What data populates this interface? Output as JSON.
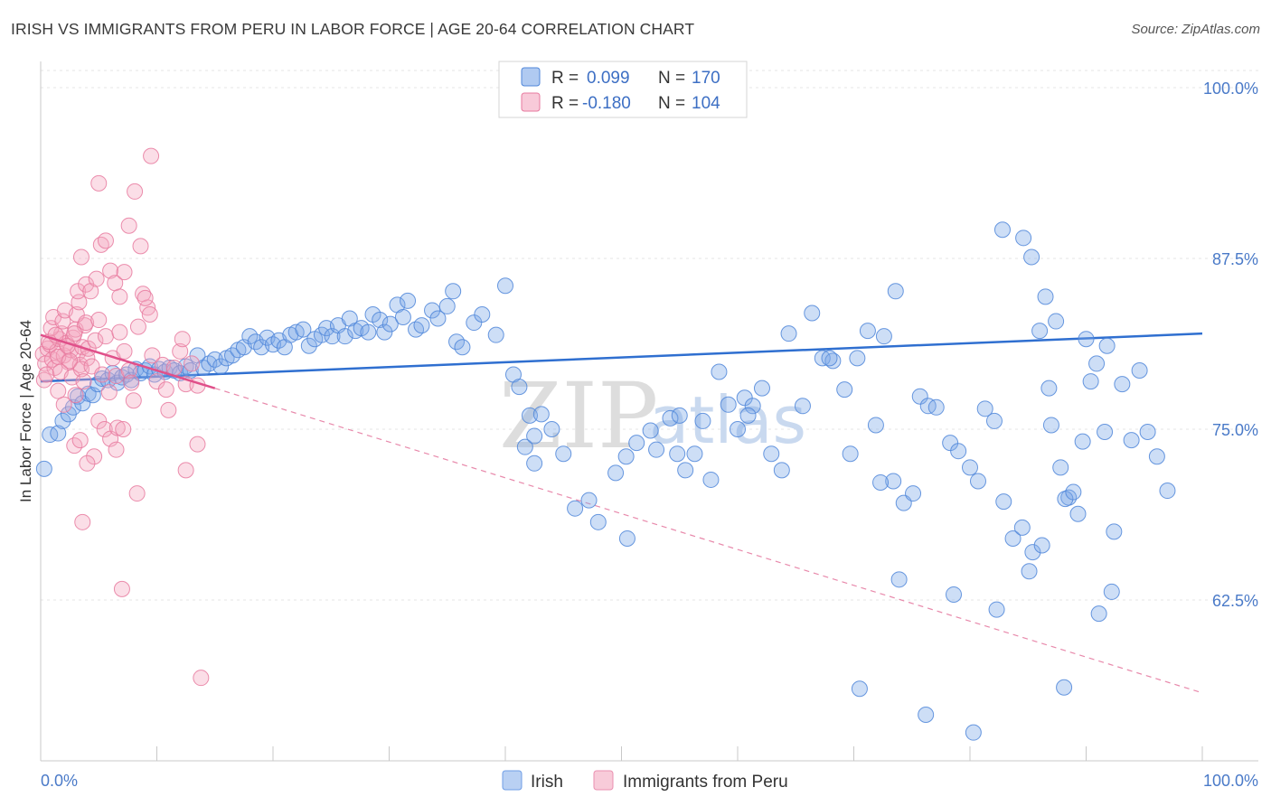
{
  "header": {
    "title": "IRISH VS IMMIGRANTS FROM PERU IN LABOR FORCE | AGE 20-64 CORRELATION CHART",
    "source": "Source: ZipAtlas.com"
  },
  "watermark": {
    "zip": "ZIP",
    "atlas": "atlas"
  },
  "legend": {
    "r_label": "R =",
    "n_label": "N =",
    "series": [
      {
        "name": "Irish",
        "r": "0.099",
        "n": "170",
        "color": "#7ba7e8"
      },
      {
        "name": "Immigrants from Peru",
        "r": "-0.180",
        "n": "104",
        "color": "#f4a7bf"
      }
    ]
  },
  "chart_data": {
    "type": "scatter",
    "title": "IRISH VS IMMIGRANTS FROM PERU IN LABOR FORCE | AGE 20-64 CORRELATION CHART",
    "xlabel": "",
    "ylabel": "In Labor Force | Age 20-64",
    "xlim": [
      0,
      100
    ],
    "ylim": [
      50.7,
      102.5
    ],
    "x_tick_labels": [
      "0.0%",
      "100.0%"
    ],
    "y_ticks": [
      {
        "value": 62.5,
        "label": "62.5%"
      },
      {
        "value": 75.0,
        "label": "75.0%"
      },
      {
        "value": 87.5,
        "label": "87.5%"
      },
      {
        "value": 100.0,
        "label": "100.0%"
      }
    ],
    "grid": true,
    "series": [
      {
        "name": "Irish",
        "color": "#7ba7e8",
        "stroke": "#4f86d9",
        "trend": {
          "x": [
            0,
            100
          ],
          "y": [
            78.5,
            82.0
          ],
          "color": "#2f6fd0"
        },
        "points": [
          [
            0.3,
            72.1
          ],
          [
            0.8,
            74.6
          ],
          [
            1.5,
            74.7
          ],
          [
            1.9,
            75.6
          ],
          [
            2.4,
            76.1
          ],
          [
            2.8,
            76.6
          ],
          [
            3.2,
            77.4
          ],
          [
            3.6,
            76.9
          ],
          [
            4.1,
            77.6
          ],
          [
            4.5,
            77.5
          ],
          [
            4.9,
            78.3
          ],
          [
            5.3,
            78.7
          ],
          [
            5.8,
            78.6
          ],
          [
            6.2,
            79.1
          ],
          [
            6.6,
            78.4
          ],
          [
            7.0,
            78.8
          ],
          [
            7.4,
            79.0
          ],
          [
            7.8,
            78.6
          ],
          [
            8.2,
            79.4
          ],
          [
            8.6,
            79.1
          ],
          [
            9.0,
            79.3
          ],
          [
            9.4,
            79.6
          ],
          [
            9.8,
            79.0
          ],
          [
            10.2,
            79.4
          ],
          [
            10.7,
            79.2
          ],
          [
            11.1,
            79.5
          ],
          [
            11.5,
            79.3
          ],
          [
            12.0,
            79.1
          ],
          [
            12.5,
            79.6
          ],
          [
            12.9,
            79.3
          ],
          [
            13.5,
            80.4
          ],
          [
            14.0,
            79.5
          ],
          [
            14.5,
            79.8
          ],
          [
            15.0,
            80.1
          ],
          [
            15.5,
            79.6
          ],
          [
            16.0,
            80.2
          ],
          [
            16.5,
            80.4
          ],
          [
            17.0,
            80.8
          ],
          [
            17.5,
            81.0
          ],
          [
            18.0,
            81.8
          ],
          [
            18.5,
            81.4
          ],
          [
            19.0,
            81.0
          ],
          [
            19.5,
            81.7
          ],
          [
            20.0,
            81.2
          ],
          [
            20.5,
            81.5
          ],
          [
            21.0,
            81.0
          ],
          [
            21.5,
            81.9
          ],
          [
            22.0,
            82.1
          ],
          [
            22.6,
            82.3
          ],
          [
            23.1,
            81.1
          ],
          [
            23.6,
            81.6
          ],
          [
            24.2,
            81.9
          ],
          [
            24.6,
            82.4
          ],
          [
            25.1,
            81.8
          ],
          [
            25.6,
            82.6
          ],
          [
            26.2,
            81.8
          ],
          [
            26.6,
            83.1
          ],
          [
            27.1,
            82.2
          ],
          [
            27.6,
            82.4
          ],
          [
            28.2,
            82.1
          ],
          [
            28.6,
            83.4
          ],
          [
            29.2,
            83.0
          ],
          [
            29.6,
            82.1
          ],
          [
            30.1,
            82.7
          ],
          [
            30.7,
            84.1
          ],
          [
            31.2,
            83.2
          ],
          [
            31.6,
            84.4
          ],
          [
            32.3,
            82.3
          ],
          [
            32.8,
            82.6
          ],
          [
            33.7,
            83.7
          ],
          [
            34.2,
            83.1
          ],
          [
            35.0,
            84.0
          ],
          [
            35.5,
            85.1
          ],
          [
            35.8,
            81.4
          ],
          [
            36.3,
            81.0
          ],
          [
            37.3,
            82.8
          ],
          [
            38.0,
            83.4
          ],
          [
            39.2,
            81.9
          ],
          [
            40.0,
            85.5
          ],
          [
            40.7,
            79.0
          ],
          [
            41.2,
            78.1
          ],
          [
            41.7,
            73.7
          ],
          [
            42.1,
            76.0
          ],
          [
            42.5,
            74.5
          ],
          [
            43.1,
            76.1
          ],
          [
            44.0,
            75.0
          ],
          [
            45.0,
            73.2
          ],
          [
            46.0,
            69.2
          ],
          [
            47.2,
            69.8
          ],
          [
            48.0,
            68.2
          ],
          [
            49.5,
            71.8
          ],
          [
            50.5,
            67.0
          ],
          [
            51.3,
            74.0
          ],
          [
            52.5,
            74.9
          ],
          [
            53.0,
            73.5
          ],
          [
            54.2,
            75.8
          ],
          [
            54.8,
            73.2
          ],
          [
            55.5,
            72.0
          ],
          [
            56.3,
            73.2
          ],
          [
            57.0,
            75.6
          ],
          [
            57.7,
            71.3
          ],
          [
            58.4,
            79.2
          ],
          [
            59.2,
            76.8
          ],
          [
            60.0,
            75.0
          ],
          [
            60.6,
            77.3
          ],
          [
            61.3,
            76.7
          ],
          [
            62.1,
            78.0
          ],
          [
            62.9,
            73.2
          ],
          [
            63.8,
            72.0
          ],
          [
            64.4,
            82.0
          ],
          [
            65.6,
            76.7
          ],
          [
            66.4,
            83.5
          ],
          [
            67.3,
            80.2
          ],
          [
            68.2,
            80.0
          ],
          [
            69.2,
            77.9
          ],
          [
            70.3,
            80.2
          ],
          [
            71.2,
            82.2
          ],
          [
            71.9,
            75.3
          ],
          [
            72.6,
            81.8
          ],
          [
            73.4,
            71.2
          ],
          [
            74.3,
            69.6
          ],
          [
            75.1,
            70.3
          ],
          [
            75.7,
            77.4
          ],
          [
            76.4,
            76.7
          ],
          [
            77.1,
            76.6
          ],
          [
            78.3,
            74.0
          ],
          [
            79.0,
            73.4
          ],
          [
            80.0,
            72.2
          ],
          [
            80.7,
            71.2
          ],
          [
            81.3,
            76.5
          ],
          [
            82.1,
            75.6
          ],
          [
            82.9,
            69.7
          ],
          [
            83.7,
            67.0
          ],
          [
            84.5,
            67.8
          ],
          [
            85.4,
            66.0
          ],
          [
            86.2,
            66.5
          ],
          [
            87.0,
            75.3
          ],
          [
            87.8,
            72.2
          ],
          [
            88.5,
            70.0
          ],
          [
            89.3,
            68.8
          ],
          [
            90.0,
            81.6
          ],
          [
            90.9,
            79.8
          ],
          [
            91.6,
            74.8
          ],
          [
            92.4,
            67.5
          ],
          [
            93.1,
            78.3
          ],
          [
            93.9,
            74.2
          ],
          [
            94.6,
            79.3
          ],
          [
            95.3,
            74.8
          ],
          [
            96.1,
            73.0
          ],
          [
            97.0,
            70.5
          ],
          [
            42.5,
            72.5
          ],
          [
            50.4,
            73.0
          ],
          [
            55.0,
            76.0
          ],
          [
            60.9,
            76.0
          ],
          [
            67.9,
            80.2
          ],
          [
            69.7,
            73.2
          ],
          [
            72.3,
            71.1
          ],
          [
            73.9,
            64.0
          ],
          [
            78.6,
            62.9
          ],
          [
            82.3,
            61.8
          ],
          [
            85.1,
            64.6
          ],
          [
            86.5,
            84.7
          ],
          [
            86.8,
            78.0
          ],
          [
            88.2,
            69.9
          ],
          [
            88.9,
            70.4
          ],
          [
            89.7,
            74.1
          ],
          [
            90.4,
            78.5
          ],
          [
            91.1,
            61.5
          ],
          [
            91.8,
            81.1
          ],
          [
            92.2,
            63.1
          ],
          [
            70.5,
            56.0
          ],
          [
            73.6,
            85.1
          ],
          [
            76.2,
            54.1
          ],
          [
            80.3,
            52.8
          ],
          [
            82.8,
            89.6
          ],
          [
            84.6,
            89.0
          ],
          [
            85.3,
            87.6
          ],
          [
            86.0,
            82.2
          ],
          [
            87.4,
            82.9
          ],
          [
            88.1,
            56.1
          ]
        ]
      },
      {
        "name": "Immigrants from Peru",
        "color": "#f4a7bf",
        "stroke": "#e77a9f",
        "trend": {
          "x": [
            0,
            15
          ],
          "y": [
            81.9,
            78.0
          ],
          "color": "#e0508a"
        },
        "trend_extended": {
          "x": [
            15,
            100
          ],
          "y": [
            78.0,
            55.7
          ],
          "color": "#e889ab"
        },
        "points": [
          [
            0.2,
            80.5
          ],
          [
            0.4,
            79.8
          ],
          [
            0.6,
            80.9
          ],
          [
            0.8,
            81.2
          ],
          [
            1.0,
            80.1
          ],
          [
            1.2,
            79.5
          ],
          [
            1.4,
            80.7
          ],
          [
            1.6,
            81.6
          ],
          [
            1.8,
            82.0
          ],
          [
            2.0,
            80.4
          ],
          [
            2.2,
            81.3
          ],
          [
            2.4,
            79.9
          ],
          [
            2.6,
            80.8
          ],
          [
            2.8,
            81.7
          ],
          [
            3.0,
            82.3
          ],
          [
            3.2,
            80.6
          ],
          [
            3.4,
            79.7
          ],
          [
            3.6,
            81.0
          ],
          [
            3.8,
            82.6
          ],
          [
            4.0,
            80.2
          ],
          [
            0.3,
            78.6
          ],
          [
            0.5,
            79.0
          ],
          [
            0.7,
            81.4
          ],
          [
            0.9,
            82.4
          ],
          [
            1.1,
            83.2
          ],
          [
            1.3,
            81.9
          ],
          [
            1.5,
            80.3
          ],
          [
            1.7,
            79.2
          ],
          [
            1.9,
            82.9
          ],
          [
            2.1,
            83.7
          ],
          [
            2.3,
            81.1
          ],
          [
            2.5,
            80.0
          ],
          [
            2.7,
            78.8
          ],
          [
            2.9,
            82.0
          ],
          [
            3.1,
            83.4
          ],
          [
            3.3,
            84.3
          ],
          [
            3.5,
            79.4
          ],
          [
            3.7,
            78.5
          ],
          [
            3.9,
            82.8
          ],
          [
            4.1,
            80.9
          ],
          [
            4.4,
            79.6
          ],
          [
            4.7,
            81.5
          ],
          [
            5.0,
            83.0
          ],
          [
            5.3,
            79.0
          ],
          [
            5.6,
            81.8
          ],
          [
            5.9,
            77.7
          ],
          [
            6.2,
            80.2
          ],
          [
            6.5,
            78.9
          ],
          [
            6.8,
            82.1
          ],
          [
            7.2,
            80.7
          ],
          [
            7.6,
            79.3
          ],
          [
            8.0,
            77.1
          ],
          [
            8.4,
            82.5
          ],
          [
            8.8,
            84.9
          ],
          [
            9.2,
            83.9
          ],
          [
            9.6,
            80.4
          ],
          [
            10.0,
            78.5
          ],
          [
            10.5,
            79.7
          ],
          [
            11.0,
            76.4
          ],
          [
            11.5,
            79.5
          ],
          [
            12.0,
            80.7
          ],
          [
            12.5,
            78.3
          ],
          [
            13.0,
            79.8
          ],
          [
            13.5,
            78.2
          ],
          [
            3.2,
            85.1
          ],
          [
            3.5,
            87.6
          ],
          [
            3.9,
            85.6
          ],
          [
            4.3,
            85.1
          ],
          [
            4.8,
            86.0
          ],
          [
            5.2,
            88.5
          ],
          [
            5.6,
            88.8
          ],
          [
            6.0,
            86.6
          ],
          [
            6.4,
            85.7
          ],
          [
            6.8,
            84.7
          ],
          [
            7.2,
            86.5
          ],
          [
            7.6,
            89.9
          ],
          [
            8.1,
            92.4
          ],
          [
            8.6,
            88.4
          ],
          [
            9.0,
            84.6
          ],
          [
            9.4,
            83.4
          ],
          [
            5.0,
            75.6
          ],
          [
            5.5,
            75.0
          ],
          [
            6.0,
            74.3
          ],
          [
            6.6,
            75.1
          ],
          [
            7.1,
            75.0
          ],
          [
            2.9,
            73.8
          ],
          [
            3.4,
            74.2
          ],
          [
            4.6,
            73.0
          ],
          [
            13.5,
            73.9
          ],
          [
            12.5,
            72.0
          ],
          [
            8.3,
            70.3
          ],
          [
            3.6,
            68.2
          ],
          [
            7.0,
            63.3
          ],
          [
            13.8,
            56.8
          ],
          [
            9.5,
            95.0
          ],
          [
            5.0,
            93.0
          ],
          [
            6.5,
            73.5
          ],
          [
            4.0,
            72.5
          ],
          [
            3.0,
            77.5
          ],
          [
            2.0,
            76.8
          ],
          [
            1.5,
            77.8
          ],
          [
            7.8,
            78.4
          ],
          [
            10.8,
            77.9
          ],
          [
            12.2,
            81.6
          ]
        ]
      }
    ]
  },
  "bottom_legend": {
    "items": [
      "Irish",
      "Immigrants from Peru"
    ]
  }
}
